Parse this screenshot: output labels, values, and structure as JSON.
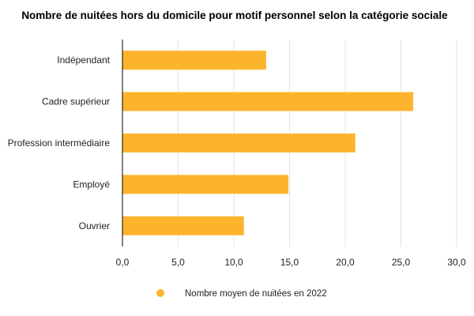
{
  "chart_data": {
    "type": "bar",
    "orientation": "horizontal",
    "title": "Nombre de nuitées hors du domicile pour motif personnel selon la catégorie sociale",
    "categories": [
      "Indépendant",
      "Cadre supérieur",
      "Profession intermédiaire",
      "Employé",
      "Ouvrier"
    ],
    "series": [
      {
        "name": "Nombre moyen de nuitées en 2022",
        "values": [
          12.9,
          26.1,
          20.9,
          14.9,
          10.9
        ],
        "color": "#fcb42d"
      }
    ],
    "xlim": [
      0,
      30
    ],
    "xticks": [
      "0,0",
      "5,0",
      "10,0",
      "15,0",
      "20,0",
      "25,0",
      "30,0"
    ],
    "grid": "vertical",
    "legend_position": "bottom"
  }
}
